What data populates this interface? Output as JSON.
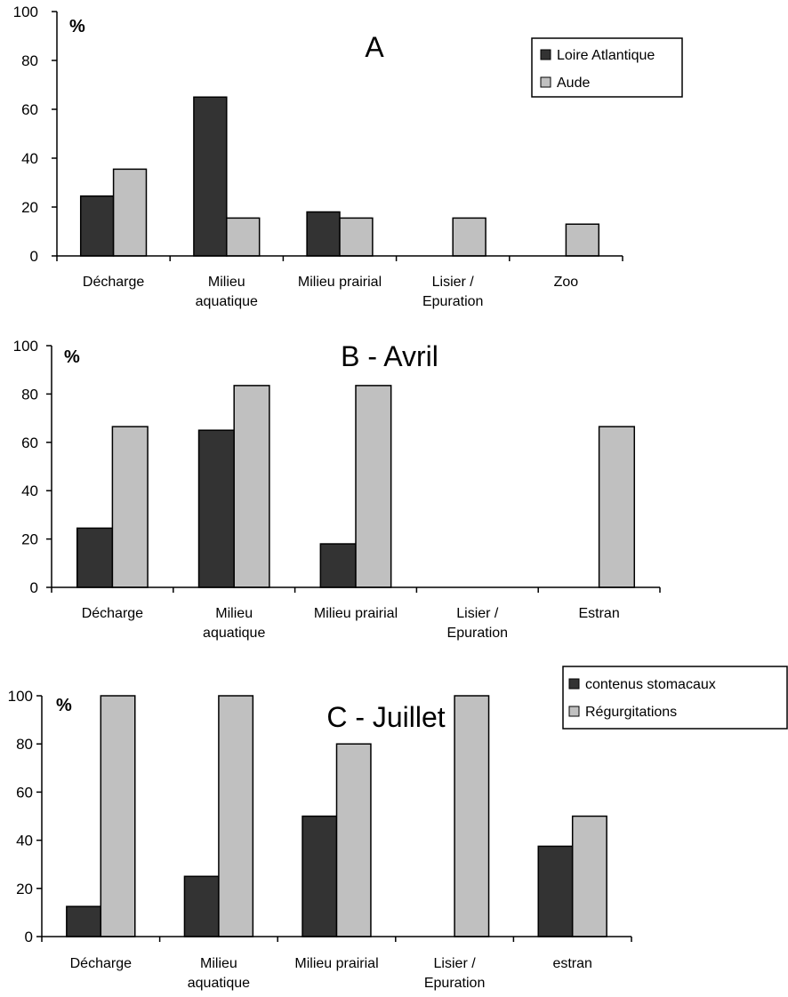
{
  "colors": {
    "series_dark": "#333333",
    "series_light": "#c0c0c0",
    "outline": "#000000",
    "background": "#ffffff"
  },
  "chart_data": [
    {
      "type": "bar",
      "title": "A",
      "unit": "%",
      "ylim": [
        0,
        100
      ],
      "yticks": [
        0,
        20,
        40,
        60,
        80,
        100
      ],
      "grid": false,
      "legend": "top-right",
      "categories": [
        [
          "Décharge"
        ],
        [
          "Milieu",
          "aquatique"
        ],
        [
          "Milieu prairial"
        ],
        [
          "Lisier /",
          "Epuration"
        ],
        [
          "Zoo"
        ]
      ],
      "series": [
        {
          "name": "Loire Atlantique",
          "color": "#333333",
          "values": [
            24.5,
            65,
            18,
            0,
            0
          ]
        },
        {
          "name": "Aude",
          "color": "#c0c0c0",
          "values": [
            35.5,
            15.5,
            15.5,
            15.5,
            13
          ]
        }
      ]
    },
    {
      "type": "bar",
      "title": "B - Avril",
      "unit": "%",
      "ylim": [
        0,
        100
      ],
      "yticks": [
        0,
        20,
        40,
        60,
        80,
        100
      ],
      "grid": false,
      "legend": "none",
      "categories": [
        [
          "Décharge"
        ],
        [
          "Milieu",
          "aquatique"
        ],
        [
          "Milieu prairial"
        ],
        [
          "Lisier /",
          "Epuration"
        ],
        [
          "Estran"
        ]
      ],
      "series": [
        {
          "color": "#333333",
          "values": [
            24.5,
            65,
            18,
            0,
            0
          ]
        },
        {
          "color": "#c0c0c0",
          "values": [
            66.5,
            83.5,
            83.5,
            0,
            66.5
          ]
        }
      ]
    },
    {
      "type": "bar",
      "title": "C - Juillet",
      "unit": "%",
      "ylim": [
        0,
        100
      ],
      "yticks": [
        0,
        20,
        40,
        60,
        80,
        100
      ],
      "grid": false,
      "legend": "top-right",
      "categories": [
        [
          "Décharge"
        ],
        [
          "Milieu",
          "aquatique"
        ],
        [
          "Milieu prairial"
        ],
        [
          "Lisier /",
          "Epuration"
        ],
        [
          "estran"
        ]
      ],
      "series": [
        {
          "name": "contenus stomacaux",
          "color": "#333333",
          "values": [
            12.5,
            25,
            50,
            0,
            37.5
          ]
        },
        {
          "name": "Régurgitations",
          "color": "#c0c0c0",
          "values": [
            100,
            100,
            80,
            100,
            50
          ]
        }
      ]
    }
  ]
}
